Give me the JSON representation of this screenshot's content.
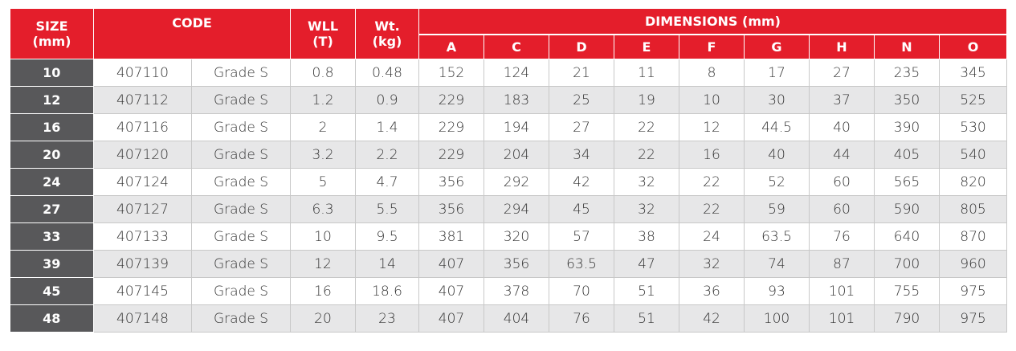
{
  "table": {
    "headers": {
      "size": [
        "SIZE",
        "(mm)"
      ],
      "code": "CODE",
      "wll": [
        "WLL",
        "(T)"
      ],
      "wt": [
        "Wt.",
        "(kg)"
      ],
      "dimensions": "DIMENSIONS (mm)",
      "dims": [
        "A",
        "C",
        "D",
        "E",
        "F",
        "G",
        "H",
        "N",
        "O"
      ]
    },
    "rows": [
      {
        "size": "10",
        "code": "407110",
        "grade": "Grade S",
        "wll": "0.8",
        "wt": "0.48",
        "dims": [
          "152",
          "124",
          "21",
          "11",
          "8",
          "17",
          "27",
          "235",
          "345"
        ]
      },
      {
        "size": "12",
        "code": "407112",
        "grade": "Grade S",
        "wll": "1.2",
        "wt": "0.9",
        "dims": [
          "229",
          "183",
          "25",
          "19",
          "10",
          "30",
          "37",
          "350",
          "525"
        ]
      },
      {
        "size": "16",
        "code": "407116",
        "grade": "Grade S",
        "wll": "2",
        "wt": "1.4",
        "dims": [
          "229",
          "194",
          "27",
          "22",
          "12",
          "44.5",
          "40",
          "390",
          "530"
        ]
      },
      {
        "size": "20",
        "code": "407120",
        "grade": "Grade S",
        "wll": "3.2",
        "wt": "2.2",
        "dims": [
          "229",
          "204",
          "34",
          "22",
          "16",
          "40",
          "44",
          "405",
          "540"
        ]
      },
      {
        "size": "24",
        "code": "407124",
        "grade": "Grade S",
        "wll": "5",
        "wt": "4.7",
        "dims": [
          "356",
          "292",
          "42",
          "32",
          "22",
          "52",
          "60",
          "565",
          "820"
        ]
      },
      {
        "size": "27",
        "code": "407127",
        "grade": "Grade S",
        "wll": "6.3",
        "wt": "5.5",
        "dims": [
          "356",
          "294",
          "45",
          "32",
          "22",
          "59",
          "60",
          "590",
          "805"
        ]
      },
      {
        "size": "33",
        "code": "407133",
        "grade": "Grade S",
        "wll": "10",
        "wt": "9.5",
        "dims": [
          "381",
          "320",
          "57",
          "38",
          "24",
          "63.5",
          "76",
          "640",
          "870"
        ]
      },
      {
        "size": "39",
        "code": "407139",
        "grade": "Grade S",
        "wll": "12",
        "wt": "14",
        "dims": [
          "407",
          "356",
          "63.5",
          "47",
          "32",
          "74",
          "87",
          "700",
          "960"
        ]
      },
      {
        "size": "45",
        "code": "407145",
        "grade": "Grade S",
        "wll": "16",
        "wt": "18.6",
        "dims": [
          "407",
          "378",
          "70",
          "51",
          "36",
          "93",
          "101",
          "755",
          "975"
        ]
      },
      {
        "size": "48",
        "code": "407148",
        "grade": "Grade S",
        "wll": "20",
        "wt": "23",
        "dims": [
          "407",
          "404",
          "76",
          "51",
          "42",
          "100",
          "101",
          "790",
          "975"
        ]
      }
    ]
  },
  "colors": {
    "header_red": "#e41e2b",
    "size_column": "#58585a",
    "alt_row": "#e7e7e8"
  }
}
